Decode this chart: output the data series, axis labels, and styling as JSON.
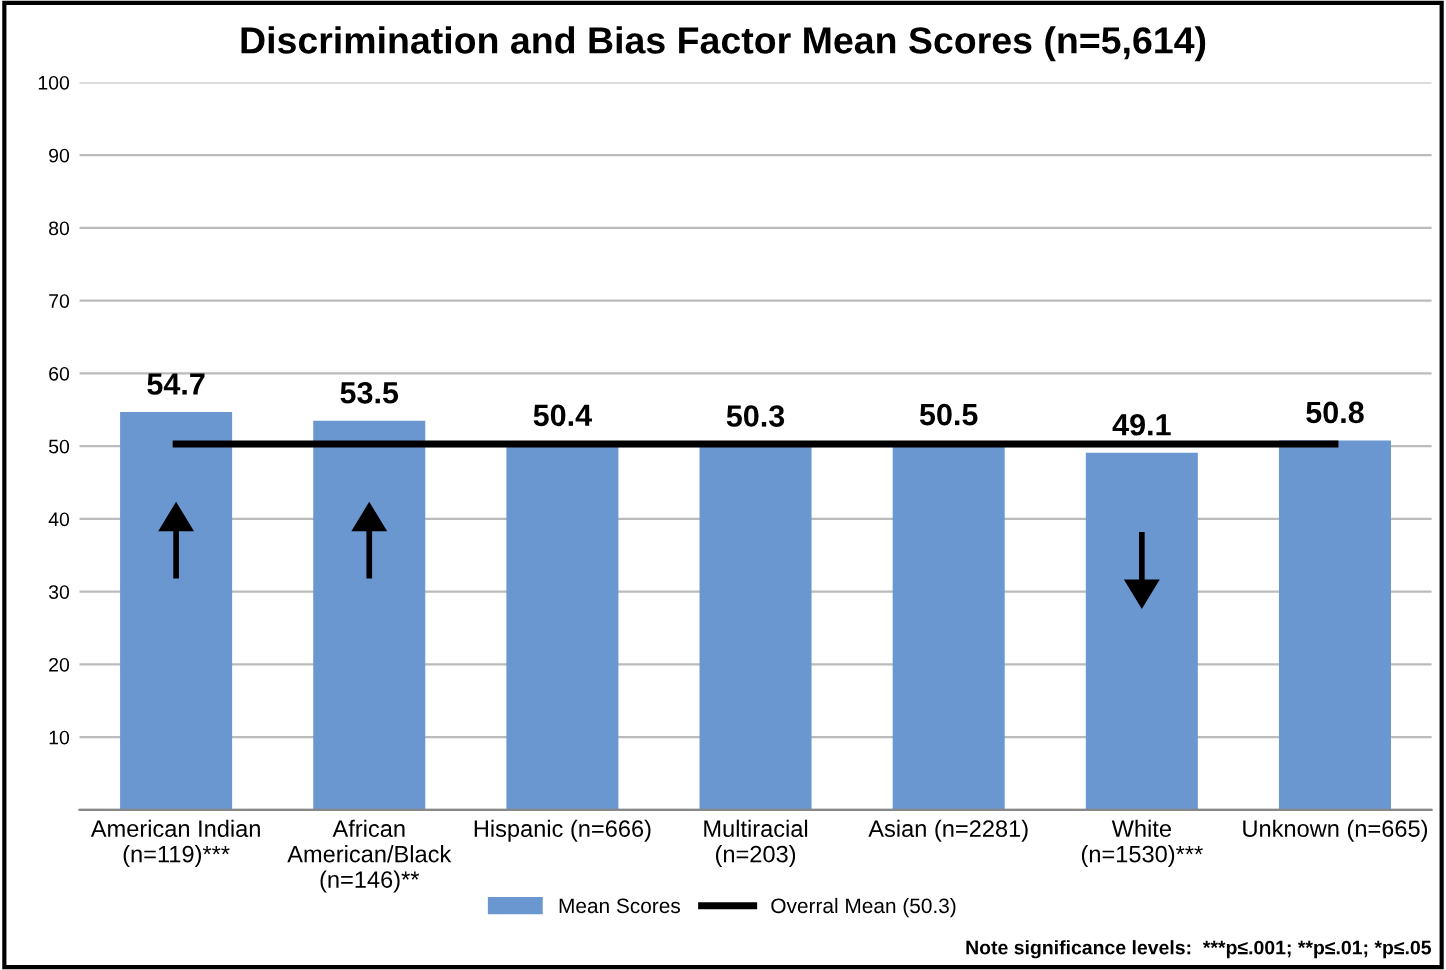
{
  "chart_data": {
    "type": "bar",
    "title": "Discrimination and Bias Factor Mean Scores (n=5,614)",
    "categories": [
      "American Indian\n(n=119)***",
      "African\nAmerican/Black\n(n=146)**",
      "Hispanic (n=666)",
      "Multiracial\n(n=203)",
      "Asian (n=2281)",
      "White\n(n=1530)***",
      "Unknown (n=665)"
    ],
    "series": [
      {
        "name": "Mean Scores",
        "color": "#6a97d0",
        "values": [
          54.7,
          53.5,
          50.4,
          50.3,
          50.5,
          49.1,
          50.8
        ],
        "value_labels": [
          "54.7",
          "53.5",
          "50.4",
          "50.3",
          "50.5",
          "49.1",
          "50.8"
        ]
      },
      {
        "name": "Overral Mean (50.3)",
        "type": "line",
        "color": "#000000",
        "values": [
          50.3,
          50.3,
          50.3,
          50.3,
          50.3,
          50.3,
          50.3
        ]
      }
    ],
    "ylim": [
      0,
      100
    ],
    "yticks": [
      {
        "value": 0,
        "label": null
      },
      10,
      20,
      30,
      40,
      50,
      60,
      70,
      80,
      90,
      100
    ],
    "grid": "y",
    "legend": "bottom",
    "marker": "none",
    "line_style": "solid",
    "annotations": [
      "Note significance levels:  ***p≤.001; **p≤.01; *p≤.05"
    ]
  }
}
